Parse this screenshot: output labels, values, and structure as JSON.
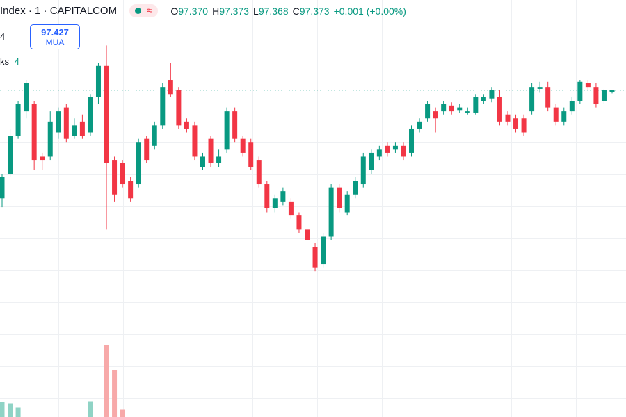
{
  "header": {
    "symbol": "Index · 1 · CAPITALCOM",
    "badge": "≈",
    "ohlc": [
      {
        "label": "O",
        "value": "97.370"
      },
      {
        "label": "H",
        "value": "97.373"
      },
      {
        "label": "L",
        "value": "97.368"
      },
      {
        "label": "C",
        "value": "97.373"
      }
    ],
    "change": "+0.001 (+0.00%)"
  },
  "side": {
    "row1": "4",
    "buy_price": "97.427",
    "buy_label": "MUA",
    "row2_label": "ks",
    "row2_value": "4"
  },
  "chart_data": {
    "type": "candlestick",
    "ylim": [
      96.862,
      97.514
    ],
    "up_color": "#089981",
    "down_color": "#f23645",
    "volume_up_color": "#8fd3c5",
    "volume_down_color": "#f7a9a9",
    "volume_ylim": [
      0,
      400
    ],
    "last_price_line": true,
    "open": [
      97.204,
      97.242,
      97.302,
      97.34,
      97.351,
      97.269,
      97.269,
      97.307,
      97.346,
      97.302,
      97.324,
      97.307,
      97.362,
      97.411,
      97.264,
      97.259,
      97.231,
      97.226,
      97.297,
      97.286,
      97.318,
      97.389,
      97.373,
      97.324,
      97.318,
      97.253,
      97.297,
      97.259,
      97.28,
      97.34,
      97.297,
      97.291,
      97.264,
      97.226,
      97.188,
      97.199,
      97.199,
      97.177,
      97.155,
      97.128,
      97.101,
      97.144,
      97.221,
      97.182,
      97.21,
      97.226,
      97.248,
      97.269,
      97.286,
      97.28,
      97.286,
      97.275,
      97.313,
      97.329,
      97.34,
      97.34,
      97.349,
      97.342,
      97.338,
      97.338,
      97.356,
      97.36,
      97.362,
      97.335,
      97.329,
      97.329,
      97.34,
      97.375,
      97.378,
      97.346,
      97.324,
      97.34,
      97.356,
      97.384,
      97.378,
      97.356,
      97.37
    ],
    "high": [
      97.242,
      97.313,
      97.356,
      97.389,
      97.356,
      97.275,
      97.34,
      97.346,
      97.351,
      97.329,
      97.335,
      97.367,
      97.416,
      97.443,
      97.269,
      97.264,
      97.237,
      97.297,
      97.302,
      97.324,
      97.384,
      97.416,
      97.378,
      97.329,
      97.324,
      97.275,
      97.302,
      97.28,
      97.346,
      97.346,
      97.302,
      97.297,
      97.269,
      97.231,
      97.21,
      97.221,
      97.204,
      97.182,
      97.161,
      97.134,
      97.15,
      97.226,
      97.226,
      97.215,
      97.237,
      97.275,
      97.28,
      97.286,
      97.291,
      97.291,
      97.291,
      97.318,
      97.329,
      97.356,
      97.346,
      97.356,
      97.354,
      97.351,
      97.346,
      97.367,
      97.367,
      97.378,
      97.373,
      97.34,
      97.335,
      97.335,
      97.384,
      97.386,
      97.386,
      97.351,
      97.346,
      97.362,
      97.389,
      97.389,
      97.384,
      97.375,
      97.373
    ],
    "low": [
      97.19,
      97.237,
      97.297,
      97.329,
      97.248,
      97.248,
      97.264,
      97.297,
      97.291,
      97.297,
      97.297,
      97.302,
      97.351,
      97.155,
      97.199,
      97.221,
      97.199,
      97.221,
      97.259,
      97.28,
      97.313,
      97.362,
      97.313,
      97.307,
      97.264,
      97.248,
      97.253,
      97.253,
      97.275,
      97.291,
      97.269,
      97.248,
      97.221,
      97.182,
      97.182,
      97.193,
      97.172,
      97.15,
      97.128,
      97.09,
      97.096,
      97.139,
      97.182,
      97.177,
      97.204,
      97.221,
      97.242,
      97.264,
      97.269,
      97.275,
      97.264,
      97.269,
      97.307,
      97.324,
      97.307,
      97.335,
      97.335,
      97.338,
      97.335,
      97.335,
      97.351,
      97.354,
      97.318,
      97.318,
      97.307,
      97.302,
      97.335,
      97.369,
      97.34,
      97.318,
      97.318,
      97.335,
      97.351,
      97.373,
      97.346,
      97.351,
      97.368
    ],
    "close": [
      97.237,
      97.302,
      97.351,
      97.384,
      97.264,
      97.264,
      97.324,
      97.34,
      97.297,
      97.318,
      97.302,
      97.362,
      97.411,
      97.259,
      97.21,
      97.226,
      97.204,
      97.291,
      97.264,
      97.318,
      97.378,
      97.367,
      97.318,
      97.313,
      97.269,
      97.269,
      97.259,
      97.269,
      97.34,
      97.297,
      97.275,
      97.253,
      97.226,
      97.188,
      97.204,
      97.215,
      97.177,
      97.155,
      97.139,
      97.096,
      97.144,
      97.221,
      97.188,
      97.21,
      97.231,
      97.269,
      97.275,
      97.28,
      97.275,
      97.286,
      97.269,
      97.313,
      97.324,
      97.351,
      97.329,
      97.351,
      97.34,
      97.346,
      97.34,
      97.362,
      97.362,
      97.373,
      97.324,
      97.324,
      97.313,
      97.307,
      97.378,
      97.378,
      97.346,
      97.324,
      97.34,
      97.356,
      97.386,
      97.378,
      97.351,
      97.373,
      97.373
    ],
    "volume": [
      14,
      13,
      9,
      null,
      null,
      null,
      null,
      null,
      null,
      null,
      null,
      15,
      null,
      69,
      45,
      7,
      null,
      null,
      null,
      null,
      null,
      null,
      null,
      null,
      null,
      null,
      null,
      null,
      null,
      null,
      null,
      null,
      null,
      null,
      null,
      null,
      null,
      null,
      null,
      null,
      null,
      null,
      null,
      null,
      null,
      null,
      null,
      null,
      null,
      null,
      null,
      null,
      null,
      null,
      null,
      null,
      null,
      null,
      null,
      null,
      null,
      null,
      null,
      null,
      null,
      null,
      null,
      null,
      null,
      null,
      null,
      null,
      null,
      null,
      null,
      null,
      null
    ]
  }
}
